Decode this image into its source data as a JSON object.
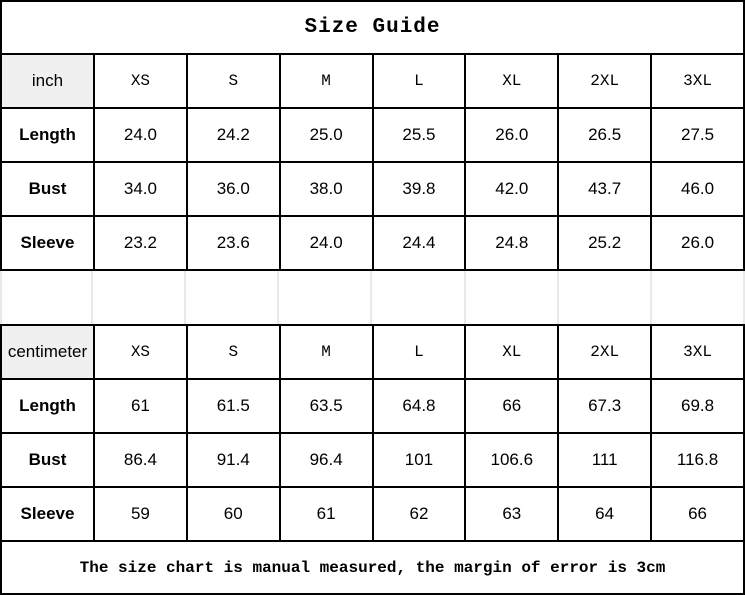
{
  "title": "Size Guide",
  "footer_note": "The size chart is manual measured, the margin of error is 3cm",
  "sizes": [
    "XS",
    "S",
    "M",
    "L",
    "XL",
    "2XL",
    "3XL"
  ],
  "inch_table": {
    "unit_label": "inch",
    "rows": [
      {
        "label": "Length",
        "values": [
          "24.0",
          "24.2",
          "25.0",
          "25.5",
          "26.0",
          "26.5",
          "27.5"
        ]
      },
      {
        "label": "Bust",
        "values": [
          "34.0",
          "36.0",
          "38.0",
          "39.8",
          "42.0",
          "43.7",
          "46.0"
        ]
      },
      {
        "label": "Sleeve",
        "values": [
          "23.2",
          "23.6",
          "24.0",
          "24.4",
          "24.8",
          "25.2",
          "26.0"
        ]
      }
    ]
  },
  "cm_table": {
    "unit_label": "centimeter",
    "rows": [
      {
        "label": "Length",
        "values": [
          "61",
          "61.5",
          "63.5",
          "64.8",
          "66",
          "67.3",
          "69.8"
        ]
      },
      {
        "label": "Bust",
        "values": [
          "86.4",
          "91.4",
          "96.4",
          "101",
          "106.6",
          "111",
          "116.8"
        ]
      },
      {
        "label": "Sleeve",
        "values": [
          "59",
          "60",
          "61",
          "62",
          "63",
          "64",
          "66"
        ]
      }
    ]
  },
  "colors": {
    "border": "#000000",
    "unit_cell_background": "#f0f0f0",
    "spacer_line": "#e9e9e9",
    "text": "#000000",
    "background": "#ffffff"
  }
}
